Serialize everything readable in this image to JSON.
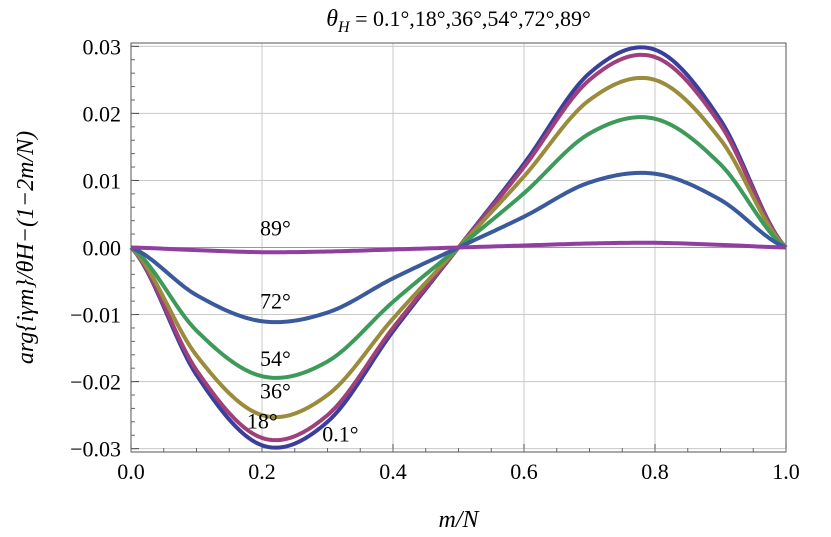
{
  "chart_data": {
    "type": "line",
    "title": "θH = 0.1°,18°,36°,54°,72°,89°",
    "xlabel": "m/N",
    "ylabel": "arg{iγm}/θH−(1−2m/N)",
    "xlim": [
      0,
      1
    ],
    "ylim": [
      -0.0305,
      0.0305
    ],
    "x_ticks": [
      "0.0",
      "0.2",
      "0.4",
      "0.6",
      "0.8",
      "1.0"
    ],
    "y_ticks": [
      "−0.03",
      "−0.02",
      "−0.01",
      "0.00",
      "0.01",
      "0.02",
      "0.03"
    ],
    "grid": true,
    "x": [
      0.0,
      0.1,
      0.2,
      0.3,
      0.4,
      0.5,
      0.6,
      0.7,
      0.8,
      0.9,
      1.0
    ],
    "series": [
      {
        "name": "0.1°",
        "color": "#3b3f9c",
        "values": [
          0,
          -0.019,
          -0.0295,
          -0.026,
          -0.0125,
          0,
          0.0125,
          0.026,
          0.0295,
          0.019,
          0
        ]
      },
      {
        "name": "18°",
        "color": "#a0407a",
        "values": [
          0,
          -0.0183,
          -0.0284,
          -0.025,
          -0.012,
          0,
          0.012,
          0.025,
          0.0284,
          0.0183,
          0
        ]
      },
      {
        "name": "36°",
        "color": "#9a8c3c",
        "values": [
          0,
          -0.0161,
          -0.025,
          -0.022,
          -0.0106,
          0,
          0.0106,
          0.022,
          0.025,
          0.0161,
          0
        ]
      },
      {
        "name": "54°",
        "color": "#3e9a5a",
        "values": [
          0,
          -0.0124,
          -0.0192,
          -0.017,
          -0.0081,
          0,
          0.0081,
          0.017,
          0.0192,
          0.0124,
          0
        ]
      },
      {
        "name": "72°",
        "color": "#3a5a9c",
        "values": [
          0,
          -0.0071,
          -0.011,
          -0.0097,
          -0.0046,
          0,
          0.0046,
          0.0097,
          0.011,
          0.0071,
          0
        ]
      },
      {
        "name": "89°",
        "color": "#8f3f9f",
        "values": [
          0,
          -0.0004,
          -0.0007,
          -0.0006,
          -0.0003,
          0,
          0.0003,
          0.0006,
          0.0007,
          0.0004,
          0
        ]
      }
    ],
    "curve_labels": [
      {
        "text": "89°",
        "x": 0.2,
        "y": 0.0012
      },
      {
        "text": "72°",
        "x": 0.2,
        "y": -0.0097
      },
      {
        "text": "54°",
        "x": 0.2,
        "y": -0.0183
      },
      {
        "text": "36°",
        "x": 0.2,
        "y": -0.0231
      },
      {
        "text": "18°",
        "x": 0.18,
        "y": -0.0276
      },
      {
        "text": "0.1°",
        "x": 0.295,
        "y": -0.0295
      }
    ]
  }
}
